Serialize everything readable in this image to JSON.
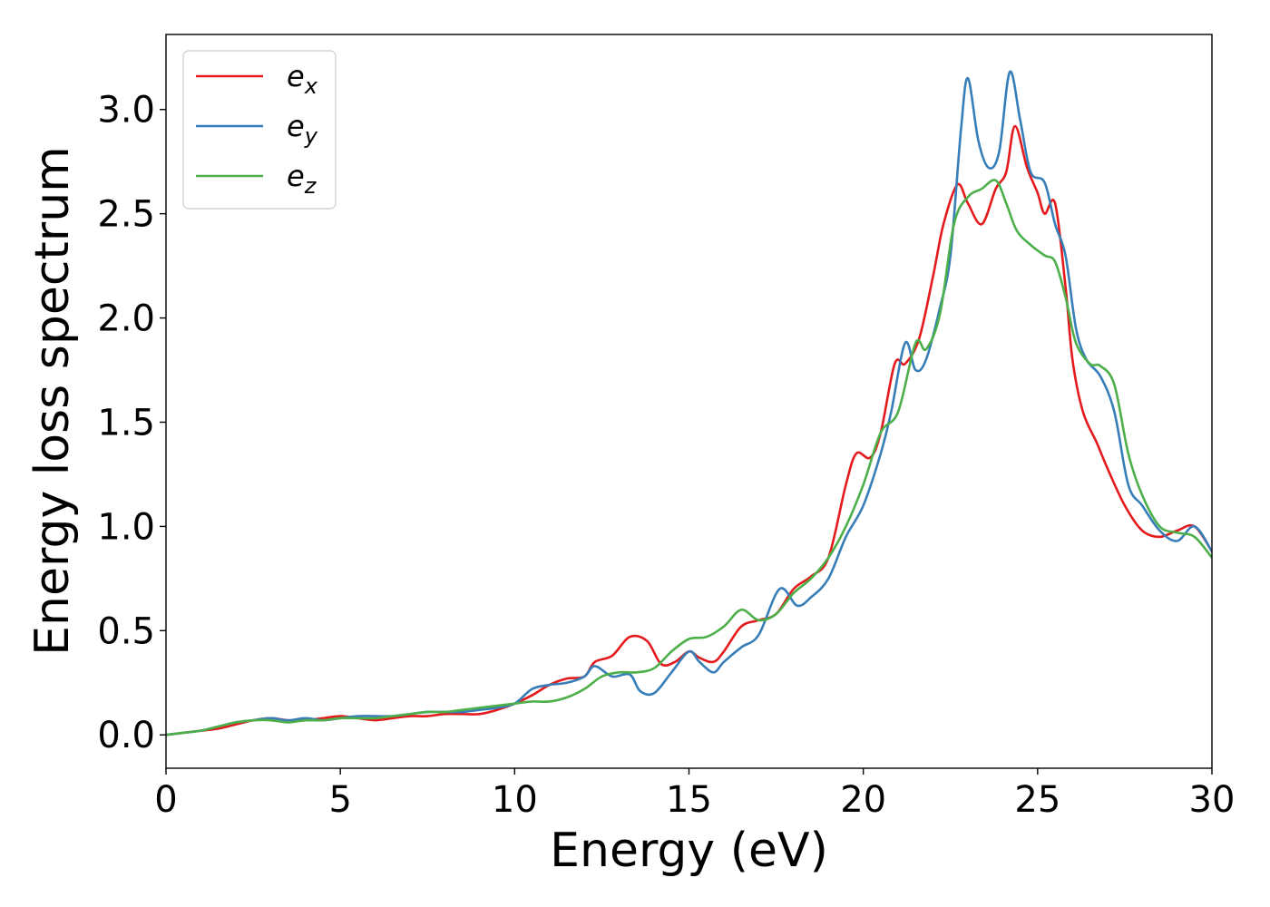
{
  "chart_data": {
    "type": "line",
    "title": "",
    "xlabel": "Energy (eV)",
    "ylabel": "Energy loss spectrum",
    "xlim": [
      0,
      30
    ],
    "ylim": [
      -0.16,
      3.36
    ],
    "xticks": [
      0,
      5,
      10,
      15,
      20,
      25,
      30
    ],
    "yticks": [
      0.0,
      0.5,
      1.0,
      1.5,
      2.0,
      2.5,
      3.0
    ],
    "xtick_labels": [
      "0",
      "5",
      "10",
      "15",
      "20",
      "25",
      "30"
    ],
    "ytick_labels": [
      "0.0",
      "0.5",
      "1.0",
      "1.5",
      "2.0",
      "2.5",
      "3.0"
    ],
    "grid": false,
    "legend_position": "top-left",
    "series": [
      {
        "name": "e_x",
        "name_base": "e",
        "name_sub": "x",
        "color": "#e41a1c",
        "points": [
          [
            0,
            0
          ],
          [
            0.5,
            0.01
          ],
          [
            1,
            0.02
          ],
          [
            1.5,
            0.03
          ],
          [
            2,
            0.05
          ],
          [
            2.5,
            0.07
          ],
          [
            3,
            0.08
          ],
          [
            3.5,
            0.07
          ],
          [
            4,
            0.07
          ],
          [
            4.5,
            0.08
          ],
          [
            5,
            0.09
          ],
          [
            5.5,
            0.08
          ],
          [
            6,
            0.07
          ],
          [
            6.5,
            0.08
          ],
          [
            7,
            0.09
          ],
          [
            7.5,
            0.09
          ],
          [
            8,
            0.1
          ],
          [
            8.5,
            0.1
          ],
          [
            9,
            0.1
          ],
          [
            9.5,
            0.12
          ],
          [
            10,
            0.15
          ],
          [
            10.5,
            0.19
          ],
          [
            11,
            0.24
          ],
          [
            11.5,
            0.27
          ],
          [
            12,
            0.28
          ],
          [
            12.3,
            0.35
          ],
          [
            12.8,
            0.38
          ],
          [
            13.3,
            0.47
          ],
          [
            13.8,
            0.45
          ],
          [
            14.2,
            0.34
          ],
          [
            14.6,
            0.35
          ],
          [
            15,
            0.4
          ],
          [
            15.3,
            0.37
          ],
          [
            15.7,
            0.35
          ],
          [
            16,
            0.4
          ],
          [
            16.5,
            0.52
          ],
          [
            17,
            0.55
          ],
          [
            17.5,
            0.58
          ],
          [
            18,
            0.7
          ],
          [
            18.5,
            0.76
          ],
          [
            19,
            0.85
          ],
          [
            19.5,
            1.2
          ],
          [
            19.8,
            1.35
          ],
          [
            20.2,
            1.33
          ],
          [
            20.5,
            1.45
          ],
          [
            20.9,
            1.78
          ],
          [
            21.2,
            1.78
          ],
          [
            21.6,
            1.9
          ],
          [
            22,
            2.2
          ],
          [
            22.3,
            2.45
          ],
          [
            22.7,
            2.64
          ],
          [
            23,
            2.55
          ],
          [
            23.4,
            2.45
          ],
          [
            23.8,
            2.62
          ],
          [
            24.1,
            2.7
          ],
          [
            24.35,
            2.92
          ],
          [
            24.7,
            2.72
          ],
          [
            25,
            2.6
          ],
          [
            25.2,
            2.5
          ],
          [
            25.5,
            2.55
          ],
          [
            25.8,
            2.15
          ],
          [
            26,
            1.8
          ],
          [
            26.3,
            1.55
          ],
          [
            26.7,
            1.4
          ],
          [
            27,
            1.28
          ],
          [
            27.5,
            1.1
          ],
          [
            28,
            0.98
          ],
          [
            28.5,
            0.95
          ],
          [
            29,
            0.98
          ],
          [
            29.5,
            1.0
          ],
          [
            30,
            0.88
          ]
        ]
      },
      {
        "name": "e_y",
        "name_base": "e",
        "name_sub": "y",
        "color": "#377eb8",
        "points": [
          [
            0,
            0
          ],
          [
            0.5,
            0.01
          ],
          [
            1,
            0.02
          ],
          [
            1.5,
            0.04
          ],
          [
            2,
            0.06
          ],
          [
            2.5,
            0.07
          ],
          [
            3,
            0.08
          ],
          [
            3.5,
            0.07
          ],
          [
            4,
            0.08
          ],
          [
            4.5,
            0.07
          ],
          [
            5,
            0.08
          ],
          [
            5.5,
            0.09
          ],
          [
            6,
            0.09
          ],
          [
            6.5,
            0.09
          ],
          [
            7,
            0.1
          ],
          [
            7.5,
            0.11
          ],
          [
            8,
            0.11
          ],
          [
            8.5,
            0.11
          ],
          [
            9,
            0.12
          ],
          [
            9.5,
            0.13
          ],
          [
            10,
            0.15
          ],
          [
            10.5,
            0.22
          ],
          [
            11,
            0.24
          ],
          [
            11.5,
            0.25
          ],
          [
            12,
            0.28
          ],
          [
            12.3,
            0.33
          ],
          [
            12.8,
            0.28
          ],
          [
            13.3,
            0.29
          ],
          [
            13.6,
            0.21
          ],
          [
            14,
            0.2
          ],
          [
            14.5,
            0.3
          ],
          [
            15,
            0.4
          ],
          [
            15.3,
            0.35
          ],
          [
            15.7,
            0.3
          ],
          [
            16,
            0.35
          ],
          [
            16.5,
            0.42
          ],
          [
            17,
            0.48
          ],
          [
            17.6,
            0.7
          ],
          [
            18.1,
            0.62
          ],
          [
            18.5,
            0.66
          ],
          [
            19,
            0.75
          ],
          [
            19.5,
            0.95
          ],
          [
            20,
            1.1
          ],
          [
            20.5,
            1.35
          ],
          [
            20.8,
            1.55
          ],
          [
            21.2,
            1.88
          ],
          [
            21.5,
            1.75
          ],
          [
            21.8,
            1.8
          ],
          [
            22.2,
            2.05
          ],
          [
            22.5,
            2.3
          ],
          [
            22.8,
            2.9
          ],
          [
            23,
            3.15
          ],
          [
            23.3,
            2.85
          ],
          [
            23.6,
            2.72
          ],
          [
            23.9,
            2.8
          ],
          [
            24.2,
            3.18
          ],
          [
            24.5,
            2.95
          ],
          [
            24.8,
            2.7
          ],
          [
            25.2,
            2.65
          ],
          [
            25.5,
            2.45
          ],
          [
            25.8,
            2.3
          ],
          [
            26.1,
            1.95
          ],
          [
            26.4,
            1.8
          ],
          [
            26.8,
            1.72
          ],
          [
            27.2,
            1.55
          ],
          [
            27.6,
            1.2
          ],
          [
            28,
            1.1
          ],
          [
            28.5,
            0.98
          ],
          [
            29,
            0.93
          ],
          [
            29.5,
            1.0
          ],
          [
            30,
            0.88
          ]
        ]
      },
      {
        "name": "e_z",
        "name_base": "e",
        "name_sub": "z",
        "color": "#4daf4a",
        "points": [
          [
            0,
            0
          ],
          [
            0.5,
            0.01
          ],
          [
            1,
            0.02
          ],
          [
            1.5,
            0.04
          ],
          [
            2,
            0.06
          ],
          [
            2.5,
            0.07
          ],
          [
            3,
            0.07
          ],
          [
            3.5,
            0.06
          ],
          [
            4,
            0.07
          ],
          [
            4.5,
            0.07
          ],
          [
            5,
            0.08
          ],
          [
            5.5,
            0.08
          ],
          [
            6,
            0.08
          ],
          [
            6.5,
            0.09
          ],
          [
            7,
            0.1
          ],
          [
            7.5,
            0.11
          ],
          [
            8,
            0.11
          ],
          [
            8.5,
            0.12
          ],
          [
            9,
            0.13
          ],
          [
            9.5,
            0.14
          ],
          [
            10,
            0.15
          ],
          [
            10.5,
            0.16
          ],
          [
            11,
            0.16
          ],
          [
            11.5,
            0.18
          ],
          [
            12,
            0.22
          ],
          [
            12.5,
            0.28
          ],
          [
            13,
            0.3
          ],
          [
            13.5,
            0.3
          ],
          [
            14,
            0.32
          ],
          [
            14.5,
            0.4
          ],
          [
            15,
            0.46
          ],
          [
            15.5,
            0.47
          ],
          [
            16,
            0.52
          ],
          [
            16.5,
            0.6
          ],
          [
            17,
            0.55
          ],
          [
            17.5,
            0.58
          ],
          [
            18,
            0.68
          ],
          [
            18.5,
            0.75
          ],
          [
            19,
            0.85
          ],
          [
            19.5,
            1.0
          ],
          [
            20,
            1.2
          ],
          [
            20.5,
            1.45
          ],
          [
            21,
            1.55
          ],
          [
            21.5,
            1.88
          ],
          [
            21.8,
            1.85
          ],
          [
            22.2,
            2.02
          ],
          [
            22.6,
            2.45
          ],
          [
            23,
            2.58
          ],
          [
            23.4,
            2.62
          ],
          [
            23.8,
            2.66
          ],
          [
            24.1,
            2.55
          ],
          [
            24.4,
            2.42
          ],
          [
            24.8,
            2.35
          ],
          [
            25.2,
            2.3
          ],
          [
            25.5,
            2.27
          ],
          [
            25.8,
            2.1
          ],
          [
            26.1,
            1.88
          ],
          [
            26.5,
            1.78
          ],
          [
            26.8,
            1.77
          ],
          [
            27.2,
            1.68
          ],
          [
            27.6,
            1.35
          ],
          [
            28,
            1.15
          ],
          [
            28.5,
            1.0
          ],
          [
            29,
            0.97
          ],
          [
            29.5,
            0.95
          ],
          [
            30,
            0.85
          ]
        ]
      }
    ]
  }
}
